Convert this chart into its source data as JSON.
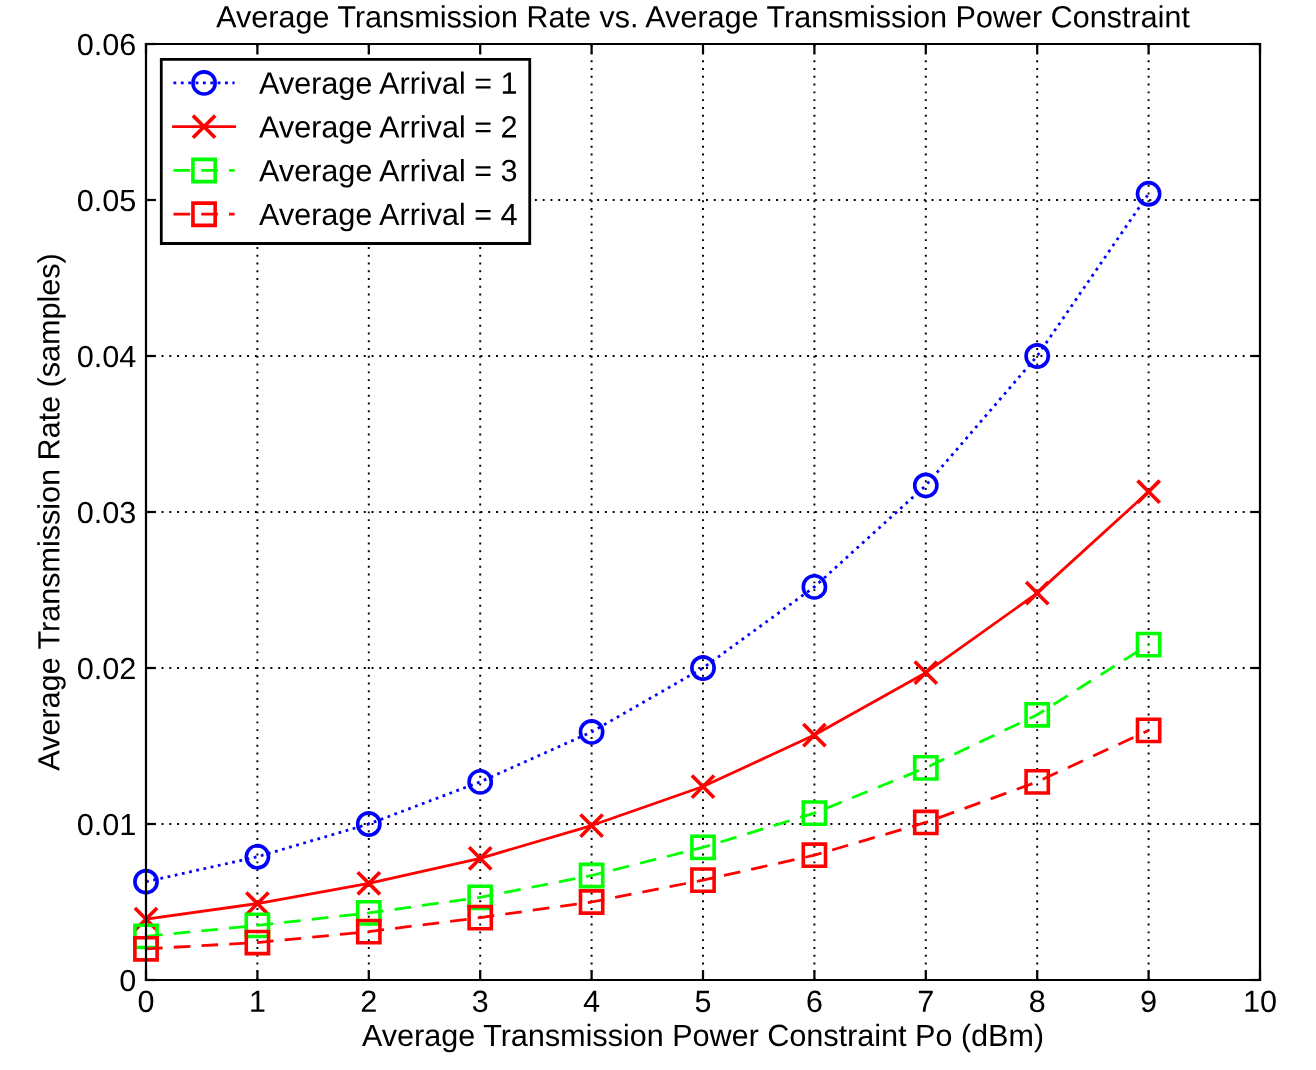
{
  "chart_data": {
    "type": "line",
    "title": "Average Transmission Rate vs. Average Transmission Power Constraint",
    "xlabel": "Average Transmission Power Constraint Po (dBm)",
    "ylabel": "Average Transmission Rate (samples)",
    "x": [
      0,
      1,
      2,
      3,
      4,
      5,
      6,
      7,
      8,
      9
    ],
    "series": [
      {
        "name": "Average Arrival = 1",
        "color": "#0000ff",
        "marker": "circle",
        "line_style": "dotted",
        "values": [
          0.0063,
          0.0079,
          0.01,
          0.0127,
          0.0159,
          0.02,
          0.0252,
          0.0317,
          0.04,
          0.0504
        ]
      },
      {
        "name": "Average Arrival = 2",
        "color": "#ff0000",
        "marker": "cross",
        "line_style": "solid",
        "values": [
          0.0039,
          0.0049,
          0.0062,
          0.0078,
          0.0099,
          0.0124,
          0.0157,
          0.0197,
          0.0248,
          0.0313
        ]
      },
      {
        "name": "Average Arrival = 3",
        "color": "#00ff00",
        "marker": "square",
        "line_style": "dashed",
        "values": [
          0.0028,
          0.0035,
          0.0043,
          0.0053,
          0.0067,
          0.0085,
          0.0107,
          0.0136,
          0.017,
          0.0215
        ]
      },
      {
        "name": "Average Arrival = 4",
        "color": "#ff0000",
        "marker": "square",
        "line_style": "dashed",
        "values": [
          0.002,
          0.0024,
          0.0031,
          0.004,
          0.005,
          0.0064,
          0.008,
          0.0101,
          0.0127,
          0.016
        ]
      }
    ],
    "xlim": [
      0,
      10
    ],
    "xticks": [
      0,
      1,
      2,
      3,
      4,
      5,
      6,
      7,
      8,
      9,
      10
    ],
    "ylim": [
      0,
      0.06
    ],
    "yticks": [
      0,
      0.01,
      0.02,
      0.03,
      0.04,
      0.05,
      0.06
    ],
    "grid": true,
    "legend": "top left"
  }
}
